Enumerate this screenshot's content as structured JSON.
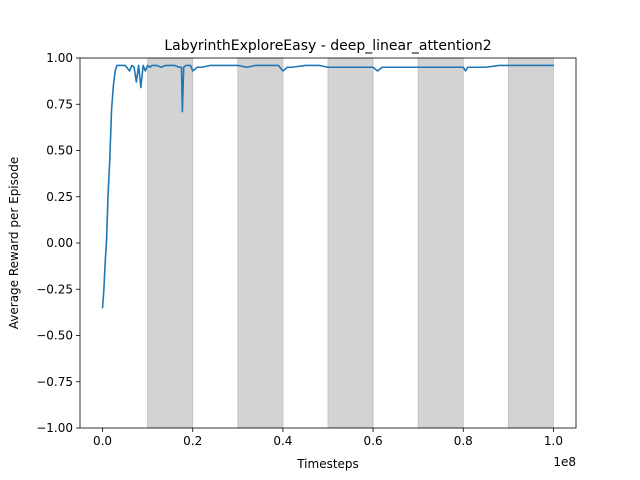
{
  "chart_data": {
    "type": "line",
    "title": "LabyrinthExploreEasy - deep_linear_attention2",
    "xlabel": "Timesteps",
    "ylabel": "Average Reward per Episode",
    "x_offset_label": "1e8",
    "x_scale": 100000000,
    "xlim": [
      -0.05,
      1.05
    ],
    "ylim": [
      -1.0,
      1.0
    ],
    "x_ticks": [
      0.0,
      0.2,
      0.4,
      0.6,
      0.8,
      1.0
    ],
    "x_tick_labels": [
      "0.0",
      "0.2",
      "0.4",
      "0.6",
      "0.8",
      "1.0"
    ],
    "y_ticks": [
      -1.0,
      -0.75,
      -0.5,
      -0.25,
      0.0,
      0.25,
      0.5,
      0.75,
      1.0
    ],
    "y_tick_labels": [
      "−1.00",
      "−0.75",
      "−0.50",
      "−0.25",
      "0.00",
      "0.25",
      "0.50",
      "0.75",
      "1.00"
    ],
    "grid": false,
    "legend": "none",
    "shaded_regions": [
      [
        0.1,
        0.2
      ],
      [
        0.3,
        0.4
      ],
      [
        0.5,
        0.6
      ],
      [
        0.7,
        0.8
      ],
      [
        0.9,
        1.0
      ]
    ],
    "colors": {
      "line": "#1f77b4",
      "shade": "#d3d3d3",
      "shade_edge": "#bdbdbd"
    },
    "series": [
      {
        "x": [
          0.0,
          0.003,
          0.006,
          0.009,
          0.012,
          0.016,
          0.02,
          0.024,
          0.028,
          0.032,
          0.036,
          0.04,
          0.05,
          0.06,
          0.065,
          0.07,
          0.075,
          0.08,
          0.085,
          0.09,
          0.095,
          0.1,
          0.105,
          0.11,
          0.12,
          0.13,
          0.14,
          0.15,
          0.16,
          0.17,
          0.175,
          0.177,
          0.18,
          0.185,
          0.19,
          0.195,
          0.2,
          0.21,
          0.22,
          0.24,
          0.26,
          0.28,
          0.3,
          0.32,
          0.34,
          0.36,
          0.38,
          0.39,
          0.4,
          0.41,
          0.42,
          0.45,
          0.48,
          0.5,
          0.52,
          0.55,
          0.58,
          0.6,
          0.61,
          0.62,
          0.65,
          0.68,
          0.7,
          0.72,
          0.75,
          0.78,
          0.8,
          0.805,
          0.81,
          0.82,
          0.85,
          0.88,
          0.9,
          0.92,
          0.95,
          0.98,
          1.0
        ],
        "y": [
          -0.35,
          -0.25,
          -0.1,
          0.02,
          0.25,
          0.45,
          0.72,
          0.85,
          0.93,
          0.96,
          0.96,
          0.96,
          0.96,
          0.93,
          0.96,
          0.95,
          0.87,
          0.96,
          0.84,
          0.96,
          0.93,
          0.96,
          0.95,
          0.96,
          0.96,
          0.95,
          0.96,
          0.96,
          0.96,
          0.95,
          0.95,
          0.71,
          0.95,
          0.96,
          0.96,
          0.96,
          0.93,
          0.95,
          0.95,
          0.96,
          0.96,
          0.96,
          0.96,
          0.95,
          0.96,
          0.96,
          0.96,
          0.96,
          0.93,
          0.95,
          0.95,
          0.96,
          0.96,
          0.95,
          0.95,
          0.95,
          0.95,
          0.95,
          0.93,
          0.95,
          0.95,
          0.95,
          0.95,
          0.95,
          0.95,
          0.95,
          0.95,
          0.93,
          0.95,
          0.95,
          0.95,
          0.96,
          0.96,
          0.96,
          0.96,
          0.96,
          0.96
        ]
      }
    ]
  }
}
